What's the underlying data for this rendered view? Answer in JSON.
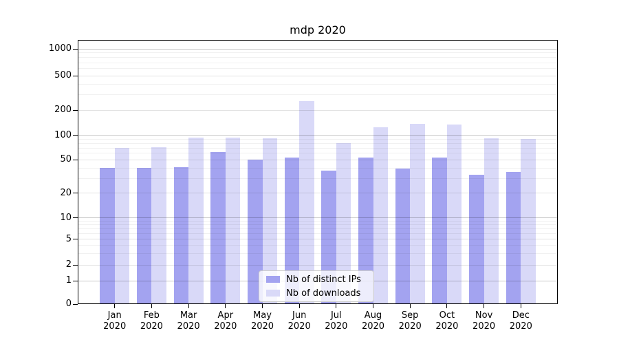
{
  "chart_data": {
    "type": "bar",
    "title": "mdp 2020",
    "xlabel": "",
    "ylabel": "",
    "x_year": "2020",
    "categories": [
      "Jan",
      "Feb",
      "Mar",
      "Apr",
      "May",
      "Jun",
      "Jul",
      "Aug",
      "Sep",
      "Oct",
      "Nov",
      "Dec"
    ],
    "series": [
      {
        "name": "Nb of distinct IPs",
        "color": "#a3a3f0",
        "values": [
          40,
          40,
          41,
          62,
          50,
          53,
          37,
          53,
          39,
          53,
          33,
          36
        ]
      },
      {
        "name": "Nb of downloads",
        "color": "#d9d9f8",
        "values": [
          70,
          71,
          94,
          94,
          92,
          255,
          81,
          126,
          137,
          135,
          92,
          91
        ]
      }
    ],
    "y_scale": "symlog",
    "y_ticks": [
      0,
      1,
      2,
      5,
      10,
      20,
      50,
      100,
      200,
      500,
      1000
    ],
    "ylim": [
      0,
      1260
    ],
    "grid": "on",
    "legend_position": "lower-center-inside",
    "y_anchors": [
      [
        0,
        0.0
      ],
      [
        1,
        0.0878
      ],
      [
        2,
        0.1484
      ],
      [
        5,
        0.2456
      ],
      [
        10,
        0.3263
      ],
      [
        20,
        0.4203
      ],
      [
        50,
        0.5461
      ],
      [
        100,
        0.6388
      ],
      [
        200,
        0.7344
      ],
      [
        500,
        0.8646
      ],
      [
        1000,
        0.9661
      ]
    ]
  }
}
